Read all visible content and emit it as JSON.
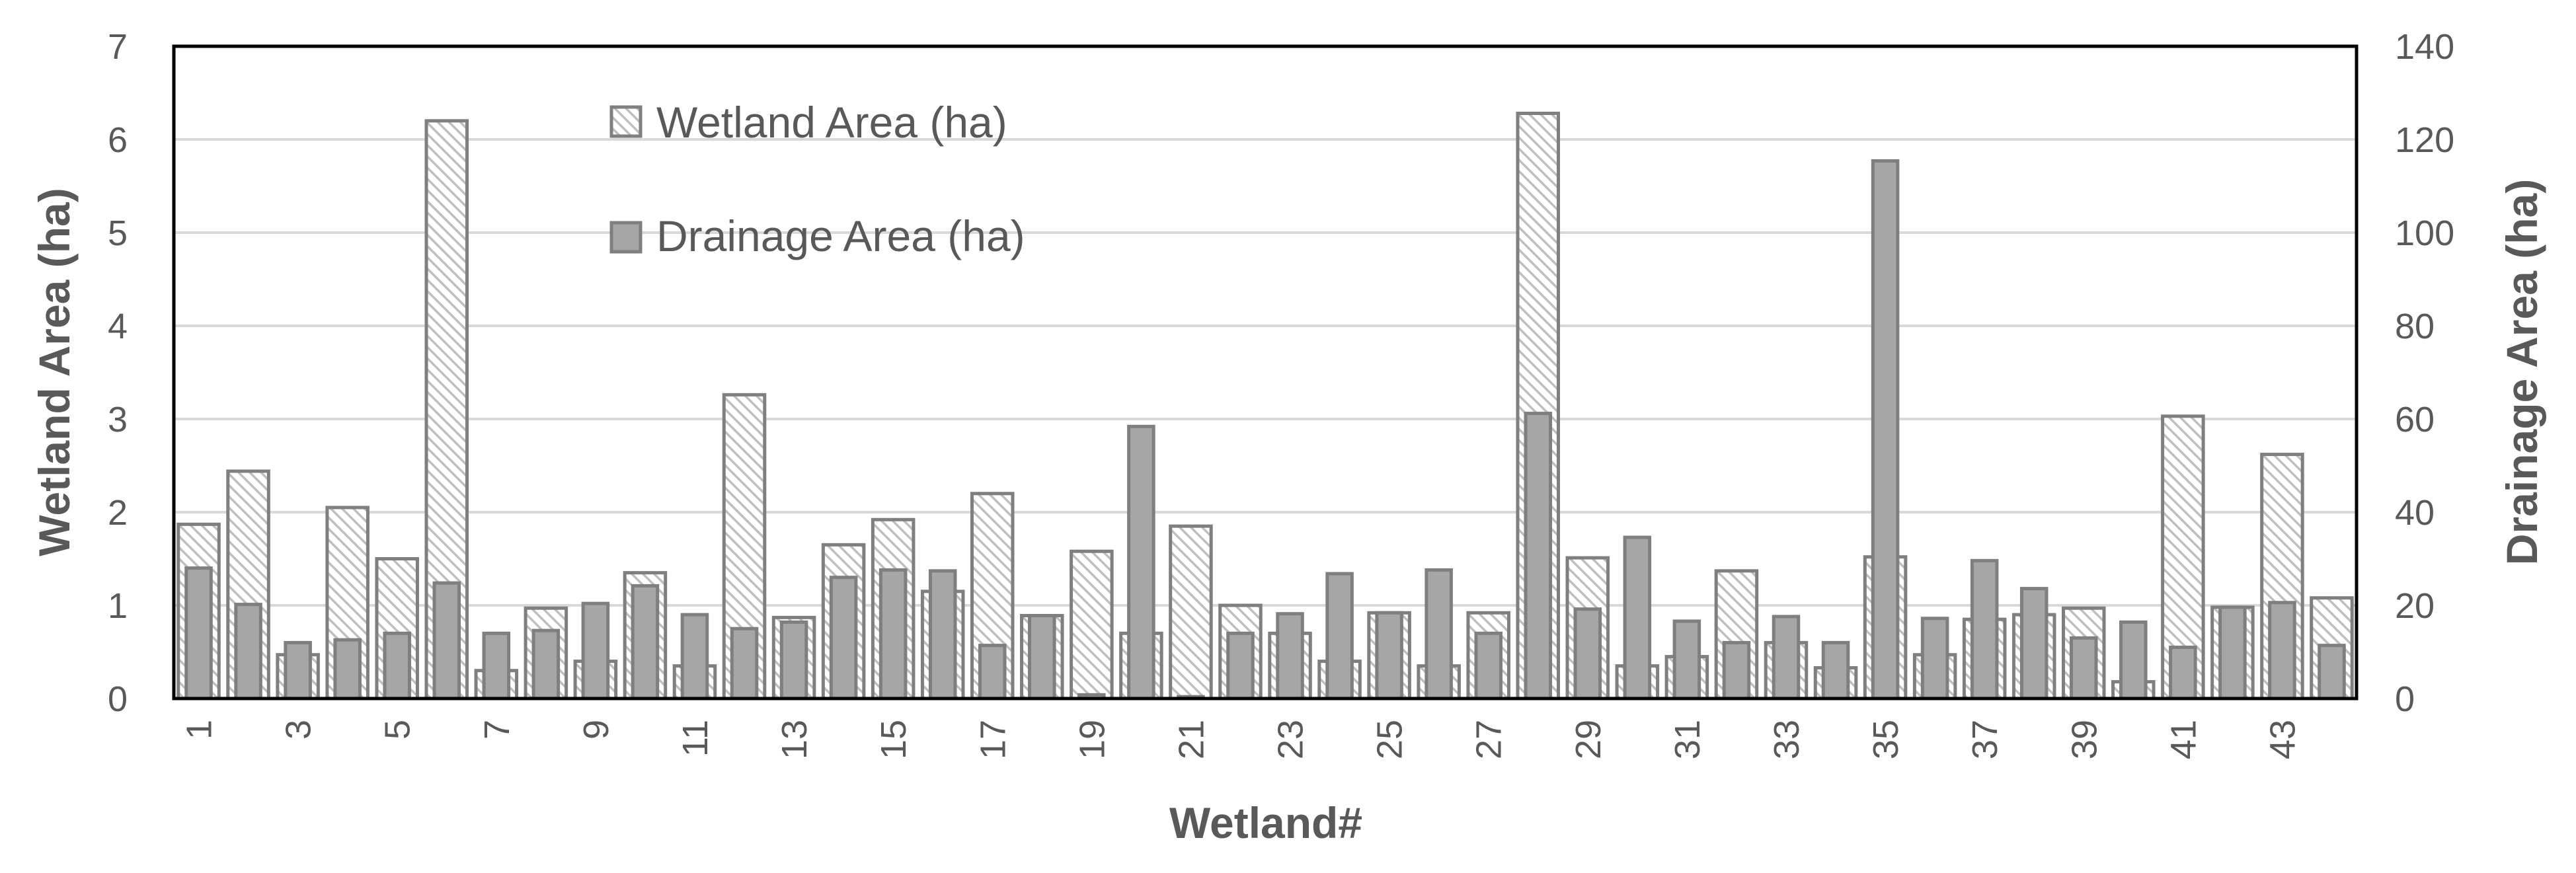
{
  "chart_data": {
    "type": "bar",
    "xlabel": "Wetland#",
    "ylabel_left": "Wetland Area  (ha)",
    "ylabel_right": "Drainage Area  (ha)",
    "y_left_lim": [
      0,
      7
    ],
    "y_left_ticks": [
      "0",
      "1",
      "2",
      "3",
      "4",
      "5",
      "6",
      "7"
    ],
    "y_right_lim": [
      0,
      140
    ],
    "y_right_ticks": [
      "0",
      "20",
      "40",
      "60",
      "80",
      "100",
      "120",
      "140"
    ],
    "x_tick_labels": [
      "1",
      "3",
      "5",
      "7",
      "9",
      "11",
      "13",
      "15",
      "17",
      "19",
      "21",
      "23",
      "25",
      "27",
      "29",
      "31",
      "33",
      "35",
      "37",
      "39",
      "41",
      "43"
    ],
    "grid": "horizontal",
    "legend_position": "top-left",
    "categories": [
      "1",
      "2",
      "3",
      "4",
      "5",
      "6",
      "7",
      "8",
      "9",
      "10",
      "11",
      "12",
      "13",
      "14",
      "15",
      "16",
      "17",
      "18",
      "19",
      "20",
      "21",
      "22",
      "23",
      "24",
      "25",
      "26",
      "27",
      "28",
      "29",
      "30",
      "31",
      "32",
      "33",
      "34",
      "35",
      "36",
      "37",
      "38",
      "39",
      "40",
      "41",
      "42",
      "43",
      "44"
    ],
    "series": [
      {
        "name": "Wetland Area (ha)",
        "axis": "left",
        "pattern": "hatched",
        "values": [
          1.87,
          2.44,
          0.47,
          2.05,
          1.5,
          6.2,
          0.3,
          0.97,
          0.4,
          1.35,
          0.35,
          3.26,
          0.87,
          1.65,
          1.92,
          1.15,
          2.2,
          0.89,
          1.58,
          0.7,
          1.85,
          1.0,
          0.7,
          0.4,
          0.92,
          0.35,
          0.92,
          6.28,
          1.51,
          0.35,
          0.45,
          1.37,
          0.6,
          0.33,
          1.52,
          0.47,
          0.85,
          0.9,
          0.97,
          0.18,
          3.03,
          0.98,
          2.62,
          1.08
        ]
      },
      {
        "name": "Drainage Area (ha)",
        "axis": "right",
        "pattern": "solid",
        "values": [
          28,
          20.2,
          12,
          12.6,
          14,
          24.8,
          14,
          14.6,
          20.4,
          24.2,
          18,
          15,
          16.4,
          26,
          27.6,
          27.4,
          11.4,
          17.8,
          0.8,
          58.4,
          0.4,
          14,
          18.2,
          26.8,
          18.4,
          27.6,
          14,
          61.2,
          19.2,
          34.6,
          16.6,
          12,
          17.6,
          12,
          115.4,
          17.2,
          29.6,
          23.6,
          13,
          16.4,
          11,
          19.6,
          20.6,
          11.4
        ]
      }
    ]
  },
  "colors": {
    "drainage_fill": "#a6a6a6",
    "bar_edge": "#7f7f7f",
    "hatch_line": "#bfbfbf",
    "gridline": "#d9d9d9",
    "text": "#595959",
    "plot_border": "#000000"
  }
}
